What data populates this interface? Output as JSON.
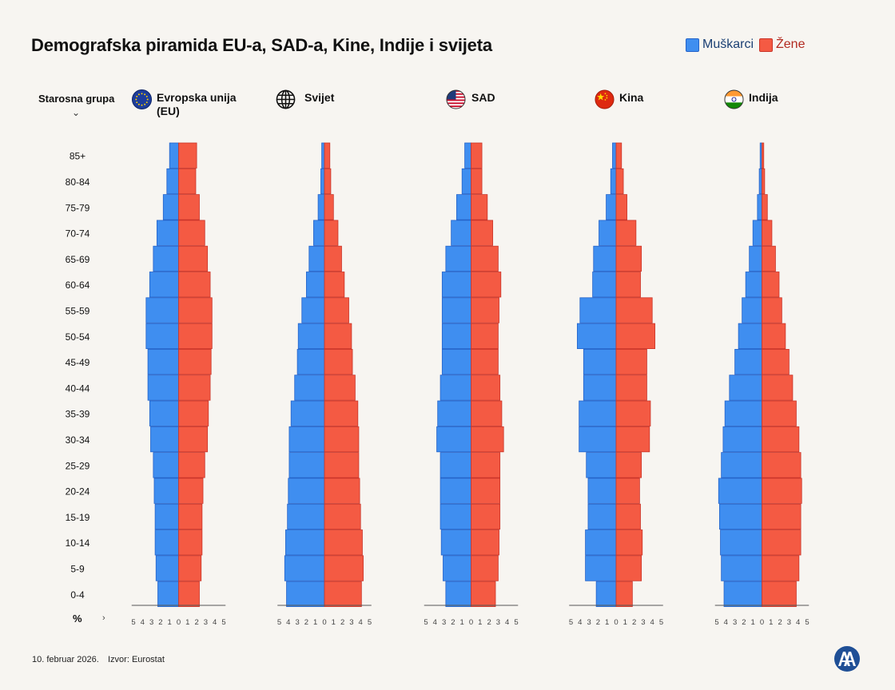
{
  "title": "Demografska piramida EU-a, SAD-a, Kine, Indije i svijeta",
  "legend": {
    "male": "Muškarci",
    "female": "Žene"
  },
  "colors": {
    "male": "#3f8ef0",
    "female": "#f45a43",
    "male_border": "#2563c9",
    "female_border": "#c9352a",
    "axis": "#555555",
    "background": "#f7f5f1"
  },
  "age_header": "Starosna grupa",
  "age_header_icon": "chevron-down-icon",
  "unit_label": "%",
  "unit_icon": "chevron-right-icon",
  "footer": {
    "date": "10. februar 2026.",
    "source": "Izvor: Eurostat"
  },
  "chart_data": {
    "type": "bar",
    "orientation": "horizontal-mirrored",
    "xlabel": "%",
    "ylabel": "Starosna grupa",
    "xlim": [
      -5,
      5
    ],
    "ticks": [
      "5",
      "4",
      "3",
      "2",
      "1",
      "0",
      "1",
      "2",
      "3",
      "4",
      "5"
    ],
    "age_groups": [
      "85+",
      "80-84",
      "75-79",
      "70-74",
      "65-69",
      "60-64",
      "55-59",
      "50-54",
      "45-49",
      "40-44",
      "35-39",
      "30-34",
      "25-29",
      "20-24",
      "15-19",
      "10-14",
      "5-9",
      "0-4"
    ],
    "panels": [
      {
        "name": "Evropska unija (EU)",
        "name_line1": "Evropska unija",
        "name_line2": "(EU)",
        "flag": "eu-flag-icon",
        "male": [
          1.0,
          1.3,
          1.7,
          2.4,
          2.8,
          3.2,
          3.6,
          3.6,
          3.4,
          3.4,
          3.2,
          3.1,
          2.8,
          2.7,
          2.6,
          2.6,
          2.5,
          2.3
        ],
        "female": [
          2.0,
          1.9,
          2.3,
          2.9,
          3.2,
          3.5,
          3.7,
          3.7,
          3.6,
          3.5,
          3.3,
          3.2,
          2.9,
          2.7,
          2.6,
          2.6,
          2.5,
          2.3
        ]
      },
      {
        "name": "Svijet",
        "flag": "globe-icon",
        "male": [
          0.3,
          0.4,
          0.7,
          1.2,
          1.7,
          2.0,
          2.5,
          2.9,
          3.0,
          3.3,
          3.7,
          3.9,
          3.9,
          4.0,
          4.1,
          4.3,
          4.4,
          4.2
        ],
        "female": [
          0.6,
          0.7,
          1.0,
          1.5,
          1.9,
          2.2,
          2.7,
          3.0,
          3.1,
          3.4,
          3.7,
          3.8,
          3.8,
          3.9,
          4.0,
          4.2,
          4.3,
          4.1
        ]
      },
      {
        "name": "SAD",
        "flag": "us-flag-icon",
        "male": [
          0.7,
          1.0,
          1.6,
          2.2,
          2.8,
          3.2,
          3.2,
          3.2,
          3.2,
          3.4,
          3.7,
          3.8,
          3.4,
          3.4,
          3.4,
          3.3,
          3.1,
          2.8
        ],
        "female": [
          1.2,
          1.2,
          1.8,
          2.4,
          3.0,
          3.3,
          3.1,
          3.0,
          3.0,
          3.2,
          3.4,
          3.6,
          3.2,
          3.2,
          3.2,
          3.1,
          3.0,
          2.7
        ]
      },
      {
        "name": "Kina",
        "flag": "china-flag-icon",
        "male": [
          0.4,
          0.6,
          1.1,
          1.9,
          2.5,
          2.6,
          4.0,
          4.3,
          3.6,
          3.6,
          4.1,
          4.1,
          3.3,
          3.1,
          3.1,
          3.4,
          3.4,
          2.2
        ],
        "female": [
          0.6,
          0.8,
          1.2,
          2.2,
          2.8,
          2.7,
          4.0,
          4.3,
          3.4,
          3.4,
          3.8,
          3.7,
          2.8,
          2.6,
          2.7,
          2.9,
          2.8,
          1.8
        ]
      },
      {
        "name": "Indija",
        "flag": "india-flag-icon",
        "male": [
          0.2,
          0.3,
          0.5,
          1.0,
          1.4,
          1.8,
          2.2,
          2.6,
          3.0,
          3.6,
          4.1,
          4.3,
          4.5,
          4.8,
          4.7,
          4.6,
          4.5,
          4.2
        ],
        "female": [
          0.2,
          0.3,
          0.6,
          1.1,
          1.5,
          1.9,
          2.2,
          2.6,
          3.0,
          3.4,
          3.8,
          4.1,
          4.3,
          4.4,
          4.3,
          4.3,
          4.1,
          3.8
        ]
      }
    ]
  }
}
